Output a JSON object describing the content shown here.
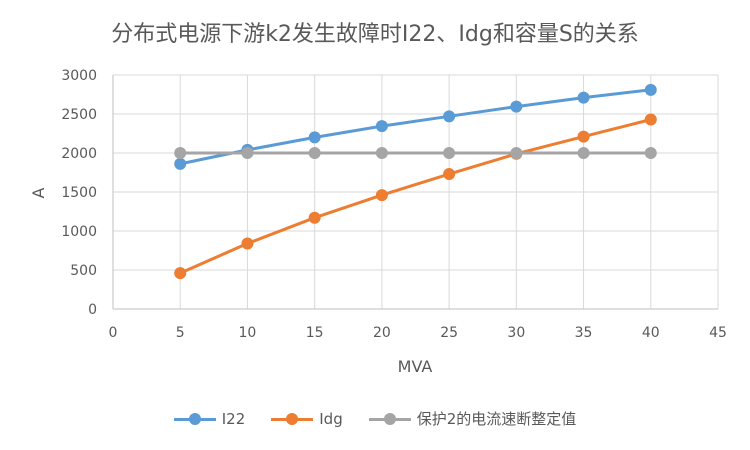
{
  "chart_data": {
    "type": "line",
    "title": "分布式电源下游k2发生故障时I22、Idg和容量S的关系",
    "xlabel": "MVA",
    "ylabel": "A",
    "xlim": [
      0,
      45
    ],
    "ylim": [
      0,
      3000
    ],
    "x_ticks": [
      "0",
      "5",
      "10",
      "15",
      "20",
      "25",
      "30",
      "35",
      "40",
      "45"
    ],
    "y_ticks": [
      "0",
      "500",
      "1000",
      "1500",
      "2000",
      "2500",
      "3000"
    ],
    "x": [
      5,
      10,
      15,
      20,
      25,
      30,
      35,
      40
    ],
    "grid": true,
    "legend_position": "bottom",
    "series": [
      {
        "name": "I22",
        "color": "#5b9bd5",
        "values": [
          1860,
          2040,
          2200,
          2345,
          2470,
          2595,
          2710,
          2810
        ]
      },
      {
        "name": "Idg",
        "color": "#ed7d31",
        "values": [
          460,
          840,
          1170,
          1460,
          1730,
          1990,
          2210,
          2430
        ]
      },
      {
        "name": "保护2的电流速断整定值",
        "color": "#a5a5a5",
        "values": [
          2000,
          2000,
          2000,
          2000,
          2000,
          2000,
          2000,
          2000
        ]
      }
    ]
  }
}
